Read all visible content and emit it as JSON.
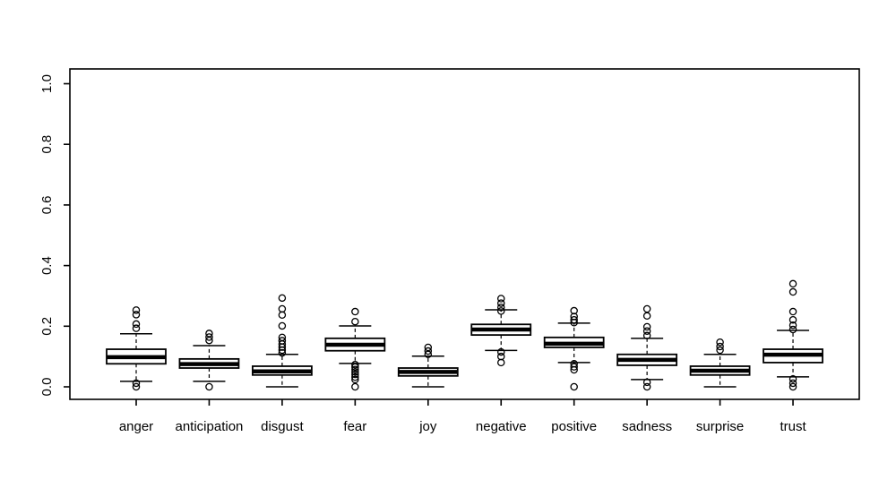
{
  "figure": {
    "title": "",
    "background_color": "#ffffff",
    "stroke_color": "#000000"
  },
  "chart_data": {
    "type": "boxplot",
    "title": "",
    "xlabel": "",
    "ylabel": "",
    "ylim": [
      0.0,
      1.0
    ],
    "yticks": [
      0.0,
      0.2,
      0.4,
      0.6,
      0.8,
      1.0
    ],
    "ytick_labels": [
      "0.0",
      "0.2",
      "0.4",
      "0.6",
      "0.8",
      "1.0"
    ],
    "grid": false,
    "legend": "none",
    "categories": [
      "anger",
      "anticipation",
      "disgust",
      "fear",
      "joy",
      "negative",
      "positive",
      "sadness",
      "surprise",
      "trust"
    ],
    "series": [
      {
        "name": "anger",
        "whisker_low": 0.018,
        "q1": 0.076,
        "median": 0.098,
        "q3": 0.124,
        "whisker_high": 0.175,
        "outliers": [
          0.253,
          0.238,
          0.207,
          0.193,
          0.012,
          0.0
        ]
      },
      {
        "name": "anticipation",
        "whisker_low": 0.018,
        "q1": 0.062,
        "median": 0.075,
        "q3": 0.092,
        "whisker_high": 0.136,
        "outliers": [
          0.176,
          0.164,
          0.153,
          0.0
        ]
      },
      {
        "name": "disgust",
        "whisker_low": 0.0,
        "q1": 0.039,
        "median": 0.051,
        "q3": 0.068,
        "whisker_high": 0.107,
        "outliers": [
          0.293,
          0.257,
          0.237,
          0.201,
          0.163,
          0.152,
          0.141,
          0.131,
          0.121,
          0.112
        ]
      },
      {
        "name": "fear",
        "whisker_low": 0.077,
        "q1": 0.119,
        "median": 0.139,
        "q3": 0.16,
        "whisker_high": 0.201,
        "outliers": [
          0.248,
          0.215,
          0.073,
          0.065,
          0.057,
          0.049,
          0.041,
          0.032,
          0.024,
          0.0
        ]
      },
      {
        "name": "joy",
        "whisker_low": 0.0,
        "q1": 0.036,
        "median": 0.049,
        "q3": 0.062,
        "whisker_high": 0.101,
        "outliers": [
          0.13,
          0.118,
          0.107
        ]
      },
      {
        "name": "negative",
        "whisker_low": 0.12,
        "q1": 0.171,
        "median": 0.189,
        "q3": 0.206,
        "whisker_high": 0.254,
        "outliers": [
          0.291,
          0.276,
          0.262,
          0.25,
          0.115,
          0.1,
          0.08
        ]
      },
      {
        "name": "positive",
        "whisker_low": 0.08,
        "q1": 0.13,
        "median": 0.142,
        "q3": 0.163,
        "whisker_high": 0.21,
        "outliers": [
          0.251,
          0.232,
          0.221,
          0.212,
          0.076,
          0.066,
          0.056,
          0.0
        ]
      },
      {
        "name": "sadness",
        "whisker_low": 0.024,
        "q1": 0.071,
        "median": 0.089,
        "q3": 0.107,
        "whisker_high": 0.16,
        "outliers": [
          0.257,
          0.234,
          0.198,
          0.184,
          0.169,
          0.015,
          0.0
        ]
      },
      {
        "name": "surprise",
        "whisker_low": 0.0,
        "q1": 0.039,
        "median": 0.053,
        "q3": 0.068,
        "whisker_high": 0.107,
        "outliers": [
          0.147,
          0.133,
          0.121
        ]
      },
      {
        "name": "trust",
        "whisker_low": 0.033,
        "q1": 0.08,
        "median": 0.106,
        "q3": 0.124,
        "whisker_high": 0.186,
        "outliers": [
          0.34,
          0.313,
          0.248,
          0.221,
          0.203,
          0.189,
          0.026,
          0.012,
          0.0
        ]
      }
    ]
  }
}
